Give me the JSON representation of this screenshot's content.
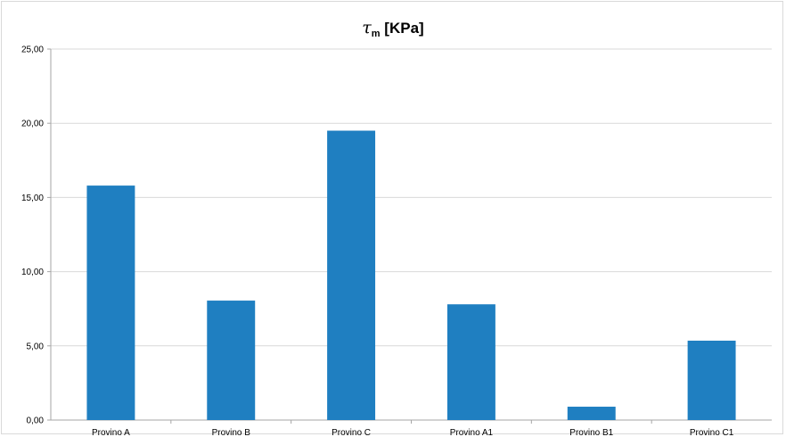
{
  "chart_data": {
    "type": "bar",
    "title": {
      "symbol": "τ",
      "subscript": "m",
      "unit": " [KPa]"
    },
    "xlabel": "",
    "ylabel": "",
    "ylim": [
      0,
      25
    ],
    "yticks": [
      "0,00",
      "5,00",
      "10,00",
      "15,00",
      "20,00",
      "25,00"
    ],
    "categories": [
      "Provino A",
      "Provino B",
      "Provino C",
      "Provino A1",
      "Provino B1",
      "Provino C1"
    ],
    "values": [
      15.8,
      8.05,
      19.5,
      7.8,
      0.9,
      5.35
    ],
    "bar_color": "#1f7fc1",
    "grid": true,
    "grid_color": "#d9d9d9",
    "legend": "none"
  }
}
